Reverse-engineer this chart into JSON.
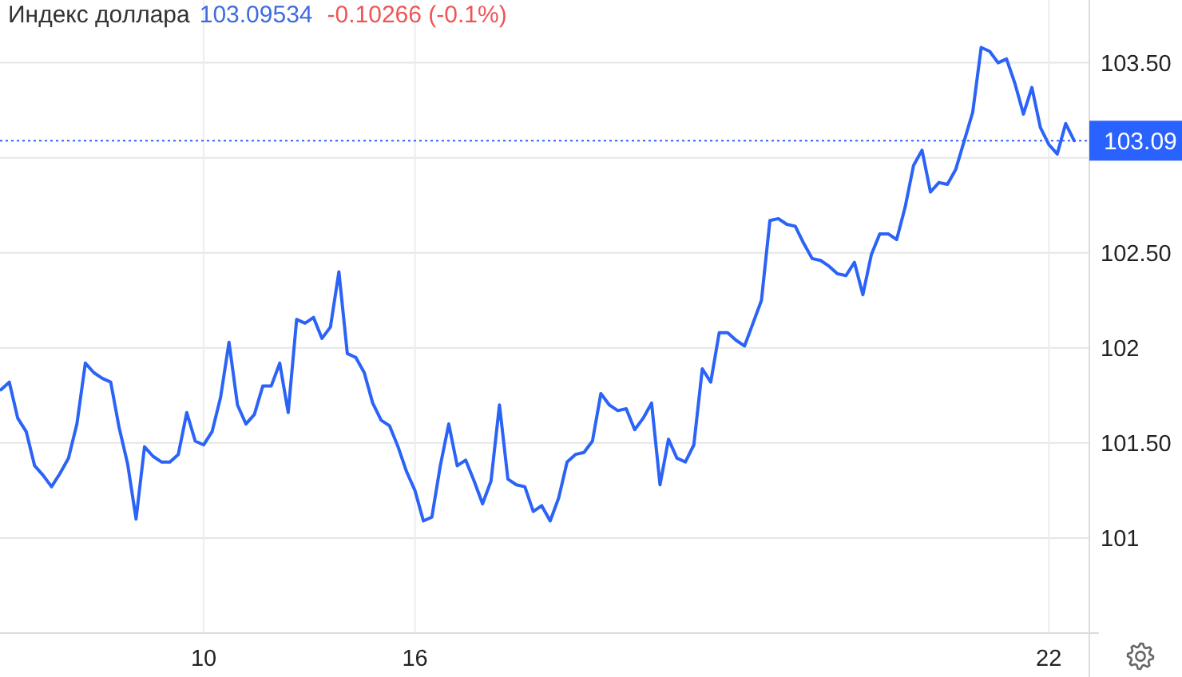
{
  "chart_data": {
    "type": "line",
    "title": "Индекс доллара",
    "annotations": [
      "103.09534",
      "-0.10266 (-0.1%)"
    ],
    "categories": [
      null,
      null,
      null,
      null,
      null,
      null,
      null,
      null,
      null,
      null,
      null,
      null,
      null,
      null,
      null,
      null,
      null,
      null,
      null,
      null,
      null,
      null,
      null,
      null,
      "10",
      null,
      null,
      null,
      null,
      null,
      null,
      null,
      null,
      null,
      null,
      null,
      null,
      null,
      null,
      null,
      null,
      null,
      null,
      null,
      null,
      null,
      null,
      null,
      null,
      "16",
      null,
      null,
      null,
      null,
      null,
      null,
      null,
      null,
      null,
      null,
      null,
      null,
      null,
      null,
      null,
      null,
      null,
      null,
      null,
      null,
      null,
      null,
      null,
      null,
      null,
      null,
      null,
      null,
      null,
      null,
      null,
      null,
      null,
      null,
      null,
      null,
      null,
      null,
      null,
      null,
      null,
      null,
      null,
      null,
      null,
      null,
      null,
      null,
      null,
      null,
      null,
      null,
      null,
      null,
      null,
      null,
      null,
      null,
      null,
      null,
      null,
      null,
      null,
      null,
      null,
      null,
      null,
      null,
      null,
      null,
      null,
      null,
      null,
      null,
      "22",
      null,
      null,
      null
    ],
    "color": "#2b63f6",
    "values": [
      101.78,
      101.82,
      101.63,
      101.56,
      101.38,
      101.33,
      101.27,
      101.34,
      101.42,
      101.6,
      101.92,
      101.87,
      101.84,
      101.82,
      101.58,
      101.39,
      101.1,
      101.48,
      101.43,
      101.4,
      101.4,
      101.44,
      101.66,
      101.51,
      101.49,
      101.56,
      101.74,
      102.03,
      101.7,
      101.6,
      101.65,
      101.8,
      101.8,
      101.92,
      101.66,
      102.15,
      102.13,
      102.16,
      102.05,
      102.11,
      102.4,
      101.97,
      101.95,
      101.87,
      101.71,
      101.62,
      101.59,
      101.48,
      101.35,
      101.25,
      101.09,
      101.11,
      101.38,
      101.6,
      101.38,
      101.41,
      101.3,
      101.18,
      101.3,
      101.7,
      101.31,
      101.28,
      101.27,
      101.14,
      101.17,
      101.09,
      101.21,
      101.4,
      101.44,
      101.45,
      101.51,
      101.76,
      101.7,
      101.67,
      101.68,
      101.57,
      101.63,
      101.71,
      101.28,
      101.52,
      101.42,
      101.4,
      101.49,
      101.89,
      101.82,
      102.08,
      102.08,
      102.04,
      102.01,
      102.13,
      102.25,
      102.67,
      102.68,
      102.65,
      102.64,
      102.55,
      102.47,
      102.46,
      102.43,
      102.39,
      102.38,
      102.45,
      102.28,
      102.49,
      102.6,
      102.6,
      102.57,
      102.74,
      102.96,
      103.04,
      102.82,
      102.87,
      102.86,
      102.94,
      103.09,
      103.24,
      103.58,
      103.56,
      103.5,
      103.52,
      103.39,
      103.23,
      103.37,
      103.16,
      103.07,
      103.02,
      103.18,
      103.09
    ],
    "ylim": [
      100.5,
      103.83
    ],
    "yticks": [
      101,
      {
        "value": 101.5,
        "label": "101.50"
      },
      102,
      {
        "value": 102.5,
        "label": "102.50"
      },
      {
        "value": 103,
        "label": null
      },
      {
        "value": 103.5,
        "label": "103.50"
      }
    ],
    "grid": true,
    "ref_lines": [
      {
        "axis": "y",
        "value": 103.09,
        "label": "103.09",
        "color": "#2962ff",
        "line_style": "dotted"
      }
    ]
  }
}
